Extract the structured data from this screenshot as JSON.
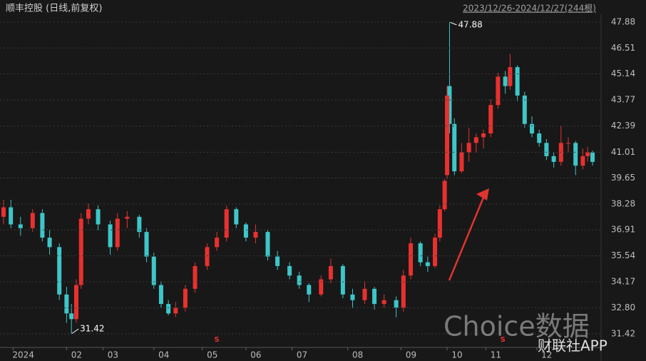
{
  "chart_data": {
    "type": "candlestick",
    "title": "顺丰控股 (日线,前复权)",
    "subtitle": "2023/12/26-2024/12/27(244根)",
    "up_color": "#e8312f",
    "down_color": "#3ec6c9",
    "grid": true,
    "x": [
      0,
      3,
      7,
      12,
      16,
      19,
      23,
      26,
      28,
      30,
      32,
      35,
      39,
      44,
      47,
      51,
      56,
      59,
      62,
      65,
      68,
      71,
      75,
      79,
      84,
      88,
      92,
      96,
      100,
      104,
      109,
      113,
      118,
      122,
      126,
      131,
      135,
      140,
      144,
      149,
      153,
      157,
      162,
      165,
      168,
      172,
      175,
      178,
      180,
      182,
      183,
      184,
      186,
      189,
      192,
      195,
      198,
      201,
      204,
      207,
      209,
      212,
      215,
      218,
      221,
      224,
      227,
      230,
      233,
      236,
      239,
      241,
      243
    ],
    "open": [
      37.6,
      38.1,
      37.2,
      37.0,
      37.8,
      36.5,
      36.0,
      33.5,
      32.5,
      32.2,
      34.0,
      37.5,
      38.0,
      37.2,
      36.0,
      37.5,
      37.6,
      36.8,
      35.5,
      34.0,
      33.0,
      32.5,
      32.8,
      33.8,
      35.0,
      36.0,
      36.5,
      38.0,
      37.2,
      36.5,
      36.8,
      35.5,
      35.0,
      34.5,
      34.0,
      33.5,
      34.3,
      35.0,
      33.5,
      33.2,
      33.8,
      33.0,
      33.2,
      32.8,
      34.5,
      36.2,
      35.2,
      35.0,
      36.5,
      38.0,
      39.8,
      44.5,
      42.5,
      40.0,
      41.0,
      41.5,
      41.8,
      42.0,
      43.5,
      45.0,
      44.5,
      45.5,
      44.0,
      42.5,
      42.0,
      41.5,
      40.8,
      40.5,
      41.5,
      41.5,
      40.3,
      40.8,
      41.0
    ],
    "high": [
      38.5,
      38.5,
      37.6,
      38.0,
      38.0,
      36.9,
      36.2,
      33.9,
      33.0,
      34.3,
      37.8,
      38.3,
      38.2,
      37.4,
      37.8,
      37.9,
      37.7,
      37.0,
      35.7,
      34.2,
      33.2,
      33.1,
      34.0,
      35.2,
      36.2,
      36.8,
      38.2,
      38.1,
      37.3,
      37.2,
      36.9,
      35.8,
      35.2,
      34.7,
      34.1,
      34.5,
      35.4,
      35.1,
      33.8,
      34.2,
      33.9,
      33.5,
      33.4,
      34.8,
      36.5,
      36.3,
      35.5,
      36.7,
      38.2,
      39.6,
      44.5,
      47.88,
      42.8,
      41.5,
      42.3,
      42.0,
      42.2,
      43.8,
      45.2,
      45.3,
      46.2,
      45.6,
      44.2,
      42.9,
      42.2,
      41.7,
      41.0,
      42.4,
      41.8,
      41.6,
      41.2,
      41.3,
      41.1
    ],
    "low": [
      37.2,
      37.0,
      36.6,
      36.8,
      36.3,
      35.6,
      33.2,
      32.0,
      31.42,
      32.0,
      33.8,
      37.2,
      36.9,
      35.6,
      35.8,
      37.0,
      36.5,
      35.2,
      33.8,
      32.8,
      32.4,
      32.3,
      32.6,
      33.6,
      34.8,
      35.8,
      36.3,
      37.0,
      36.3,
      36.2,
      35.3,
      34.8,
      34.3,
      33.8,
      33.1,
      33.4,
      34.1,
      33.3,
      32.8,
      33.0,
      32.7,
      32.8,
      32.3,
      32.6,
      34.3,
      35.0,
      34.7,
      34.9,
      36.3,
      37.9,
      39.6,
      42.0,
      39.8,
      39.9,
      40.5,
      41.0,
      41.2,
      41.8,
      43.3,
      44.1,
      44.3,
      43.7,
      42.3,
      41.8,
      41.3,
      40.6,
      40.2,
      40.3,
      41.0,
      39.8,
      40.1,
      40.5,
      40.3
    ],
    "close": [
      38.1,
      37.2,
      37.0,
      37.8,
      36.5,
      36.0,
      33.5,
      32.5,
      32.2,
      34.0,
      37.5,
      38.0,
      37.2,
      36.0,
      37.5,
      37.6,
      36.8,
      35.5,
      34.0,
      33.0,
      32.5,
      32.8,
      33.8,
      35.0,
      36.0,
      36.5,
      38.0,
      37.2,
      36.5,
      36.8,
      35.5,
      35.0,
      34.5,
      34.0,
      33.5,
      34.3,
      35.0,
      33.5,
      33.2,
      33.8,
      33.0,
      33.2,
      32.8,
      34.5,
      36.2,
      35.2,
      35.0,
      36.5,
      38.0,
      39.5,
      44.0,
      42.5,
      40.0,
      41.0,
      41.5,
      41.8,
      42.0,
      43.5,
      45.0,
      44.5,
      45.5,
      44.0,
      42.5,
      42.0,
      41.5,
      40.8,
      40.5,
      41.5,
      41.5,
      40.3,
      40.8,
      41.0,
      40.5
    ],
    "xlim": [
      0,
      243
    ],
    "xticks": [
      {
        "value": 4,
        "label": "2024"
      },
      {
        "value": 26,
        "label": "02"
      },
      {
        "value": 41,
        "label": "03"
      },
      {
        "value": 62,
        "label": "04"
      },
      {
        "value": 82,
        "label": "05"
      },
      {
        "value": 100,
        "label": "06"
      },
      {
        "value": 119,
        "label": "07"
      },
      {
        "value": 142,
        "label": "08"
      },
      {
        "value": 164,
        "label": "09"
      },
      {
        "value": 183,
        "label": "10"
      },
      {
        "value": 199,
        "label": "11"
      },
      {
        "value": 220,
        "label": "12"
      }
    ],
    "ylim": [
      30.78,
      48.29
    ],
    "yticks": [
      47.88,
      46.51,
      45.14,
      43.77,
      42.39,
      41.01,
      39.65,
      38.28,
      36.91,
      35.54,
      34.17,
      {
        "value": 32.8,
        "label": "32.80"
      },
      31.42
    ],
    "annotations": [
      {
        "x": 184,
        "value": 47.88
      },
      {
        "x": 28,
        "value": 31.42
      }
    ],
    "events": [
      {
        "x": 88,
        "label": "S"
      },
      {
        "x": 206,
        "label": "S"
      }
    ],
    "watermarks": [
      "Choice数据",
      "财联社APP"
    ]
  }
}
